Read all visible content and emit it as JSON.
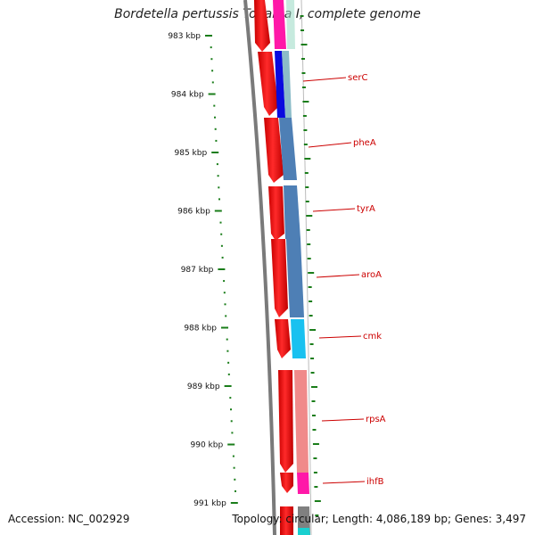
{
  "title": "Bordetella pertussis Tohama I, complete genome",
  "accession": "Accession: NC_002929",
  "info": "Topology: circular; Length: 4,086,189 bp; Genes: 3,497",
  "ruler": {
    "labels": [
      "983 kbp",
      "984 kbp",
      "985 kbp",
      "986 kbp",
      "987 kbp",
      "988 kbp",
      "989 kbp",
      "990 kbp",
      "991 kbp"
    ]
  },
  "genes": [
    {
      "name": "serC",
      "color": "#0a0adf"
    },
    {
      "name": "pheA",
      "color": "#4e7fb5"
    },
    {
      "name": "tyrA",
      "color": "#4e7fb5"
    },
    {
      "name": "aroA",
      "color": "#4e7fb5"
    },
    {
      "name": "cmk",
      "color": "#19c1f0"
    },
    {
      "name": "rpsA",
      "color": "#f08a8a"
    },
    {
      "name": "ihfB",
      "color": "#ff18a8"
    }
  ],
  "colors": {
    "cds": "#ff0000",
    "label": "#cc0000",
    "ruler": "#1a7d1a",
    "backbone": "#808080"
  }
}
